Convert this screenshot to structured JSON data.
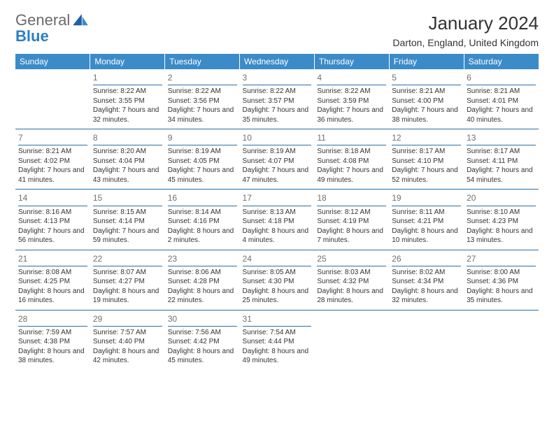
{
  "logo": {
    "text1": "General",
    "text2": "Blue"
  },
  "header": {
    "month_title": "January 2024",
    "location": "Darton, England, United Kingdom"
  },
  "colors": {
    "header_bg": "#3b8bc9",
    "header_text": "#ffffff",
    "divider": "#2b6fa8",
    "daynum": "#707070",
    "body_text": "#333333",
    "logo_gray": "#6a6a6a",
    "logo_blue": "#2b7fc4",
    "page_bg": "#ffffff"
  },
  "typography": {
    "title_fontsize_pt": 20,
    "location_fontsize_pt": 11,
    "dayheader_fontsize_pt": 9,
    "cell_fontsize_pt": 7.5,
    "daynum_fontsize_pt": 9
  },
  "day_headers": [
    "Sunday",
    "Monday",
    "Tuesday",
    "Wednesday",
    "Thursday",
    "Friday",
    "Saturday"
  ],
  "weeks": [
    [
      {
        "blank": true
      },
      {
        "num": "1",
        "sunrise": "Sunrise: 8:22 AM",
        "sunset": "Sunset: 3:55 PM",
        "daylight": "Daylight: 7 hours and 32 minutes."
      },
      {
        "num": "2",
        "sunrise": "Sunrise: 8:22 AM",
        "sunset": "Sunset: 3:56 PM",
        "daylight": "Daylight: 7 hours and 34 minutes."
      },
      {
        "num": "3",
        "sunrise": "Sunrise: 8:22 AM",
        "sunset": "Sunset: 3:57 PM",
        "daylight": "Daylight: 7 hours and 35 minutes."
      },
      {
        "num": "4",
        "sunrise": "Sunrise: 8:22 AM",
        "sunset": "Sunset: 3:59 PM",
        "daylight": "Daylight: 7 hours and 36 minutes."
      },
      {
        "num": "5",
        "sunrise": "Sunrise: 8:21 AM",
        "sunset": "Sunset: 4:00 PM",
        "daylight": "Daylight: 7 hours and 38 minutes."
      },
      {
        "num": "6",
        "sunrise": "Sunrise: 8:21 AM",
        "sunset": "Sunset: 4:01 PM",
        "daylight": "Daylight: 7 hours and 40 minutes."
      }
    ],
    [
      {
        "num": "7",
        "sunrise": "Sunrise: 8:21 AM",
        "sunset": "Sunset: 4:02 PM",
        "daylight": "Daylight: 7 hours and 41 minutes."
      },
      {
        "num": "8",
        "sunrise": "Sunrise: 8:20 AM",
        "sunset": "Sunset: 4:04 PM",
        "daylight": "Daylight: 7 hours and 43 minutes."
      },
      {
        "num": "9",
        "sunrise": "Sunrise: 8:19 AM",
        "sunset": "Sunset: 4:05 PM",
        "daylight": "Daylight: 7 hours and 45 minutes."
      },
      {
        "num": "10",
        "sunrise": "Sunrise: 8:19 AM",
        "sunset": "Sunset: 4:07 PM",
        "daylight": "Daylight: 7 hours and 47 minutes."
      },
      {
        "num": "11",
        "sunrise": "Sunrise: 8:18 AM",
        "sunset": "Sunset: 4:08 PM",
        "daylight": "Daylight: 7 hours and 49 minutes."
      },
      {
        "num": "12",
        "sunrise": "Sunrise: 8:17 AM",
        "sunset": "Sunset: 4:10 PM",
        "daylight": "Daylight: 7 hours and 52 minutes."
      },
      {
        "num": "13",
        "sunrise": "Sunrise: 8:17 AM",
        "sunset": "Sunset: 4:11 PM",
        "daylight": "Daylight: 7 hours and 54 minutes."
      }
    ],
    [
      {
        "num": "14",
        "sunrise": "Sunrise: 8:16 AM",
        "sunset": "Sunset: 4:13 PM",
        "daylight": "Daylight: 7 hours and 56 minutes."
      },
      {
        "num": "15",
        "sunrise": "Sunrise: 8:15 AM",
        "sunset": "Sunset: 4:14 PM",
        "daylight": "Daylight: 7 hours and 59 minutes."
      },
      {
        "num": "16",
        "sunrise": "Sunrise: 8:14 AM",
        "sunset": "Sunset: 4:16 PM",
        "daylight": "Daylight: 8 hours and 2 minutes."
      },
      {
        "num": "17",
        "sunrise": "Sunrise: 8:13 AM",
        "sunset": "Sunset: 4:18 PM",
        "daylight": "Daylight: 8 hours and 4 minutes."
      },
      {
        "num": "18",
        "sunrise": "Sunrise: 8:12 AM",
        "sunset": "Sunset: 4:19 PM",
        "daylight": "Daylight: 8 hours and 7 minutes."
      },
      {
        "num": "19",
        "sunrise": "Sunrise: 8:11 AM",
        "sunset": "Sunset: 4:21 PM",
        "daylight": "Daylight: 8 hours and 10 minutes."
      },
      {
        "num": "20",
        "sunrise": "Sunrise: 8:10 AM",
        "sunset": "Sunset: 4:23 PM",
        "daylight": "Daylight: 8 hours and 13 minutes."
      }
    ],
    [
      {
        "num": "21",
        "sunrise": "Sunrise: 8:08 AM",
        "sunset": "Sunset: 4:25 PM",
        "daylight": "Daylight: 8 hours and 16 minutes."
      },
      {
        "num": "22",
        "sunrise": "Sunrise: 8:07 AM",
        "sunset": "Sunset: 4:27 PM",
        "daylight": "Daylight: 8 hours and 19 minutes."
      },
      {
        "num": "23",
        "sunrise": "Sunrise: 8:06 AM",
        "sunset": "Sunset: 4:28 PM",
        "daylight": "Daylight: 8 hours and 22 minutes."
      },
      {
        "num": "24",
        "sunrise": "Sunrise: 8:05 AM",
        "sunset": "Sunset: 4:30 PM",
        "daylight": "Daylight: 8 hours and 25 minutes."
      },
      {
        "num": "25",
        "sunrise": "Sunrise: 8:03 AM",
        "sunset": "Sunset: 4:32 PM",
        "daylight": "Daylight: 8 hours and 28 minutes."
      },
      {
        "num": "26",
        "sunrise": "Sunrise: 8:02 AM",
        "sunset": "Sunset: 4:34 PM",
        "daylight": "Daylight: 8 hours and 32 minutes."
      },
      {
        "num": "27",
        "sunrise": "Sunrise: 8:00 AM",
        "sunset": "Sunset: 4:36 PM",
        "daylight": "Daylight: 8 hours and 35 minutes."
      }
    ],
    [
      {
        "num": "28",
        "sunrise": "Sunrise: 7:59 AM",
        "sunset": "Sunset: 4:38 PM",
        "daylight": "Daylight: 8 hours and 38 minutes."
      },
      {
        "num": "29",
        "sunrise": "Sunrise: 7:57 AM",
        "sunset": "Sunset: 4:40 PM",
        "daylight": "Daylight: 8 hours and 42 minutes."
      },
      {
        "num": "30",
        "sunrise": "Sunrise: 7:56 AM",
        "sunset": "Sunset: 4:42 PM",
        "daylight": "Daylight: 8 hours and 45 minutes."
      },
      {
        "num": "31",
        "sunrise": "Sunrise: 7:54 AM",
        "sunset": "Sunset: 4:44 PM",
        "daylight": "Daylight: 8 hours and 49 minutes."
      },
      {
        "blank": true
      },
      {
        "blank": true
      },
      {
        "blank": true
      }
    ]
  ]
}
